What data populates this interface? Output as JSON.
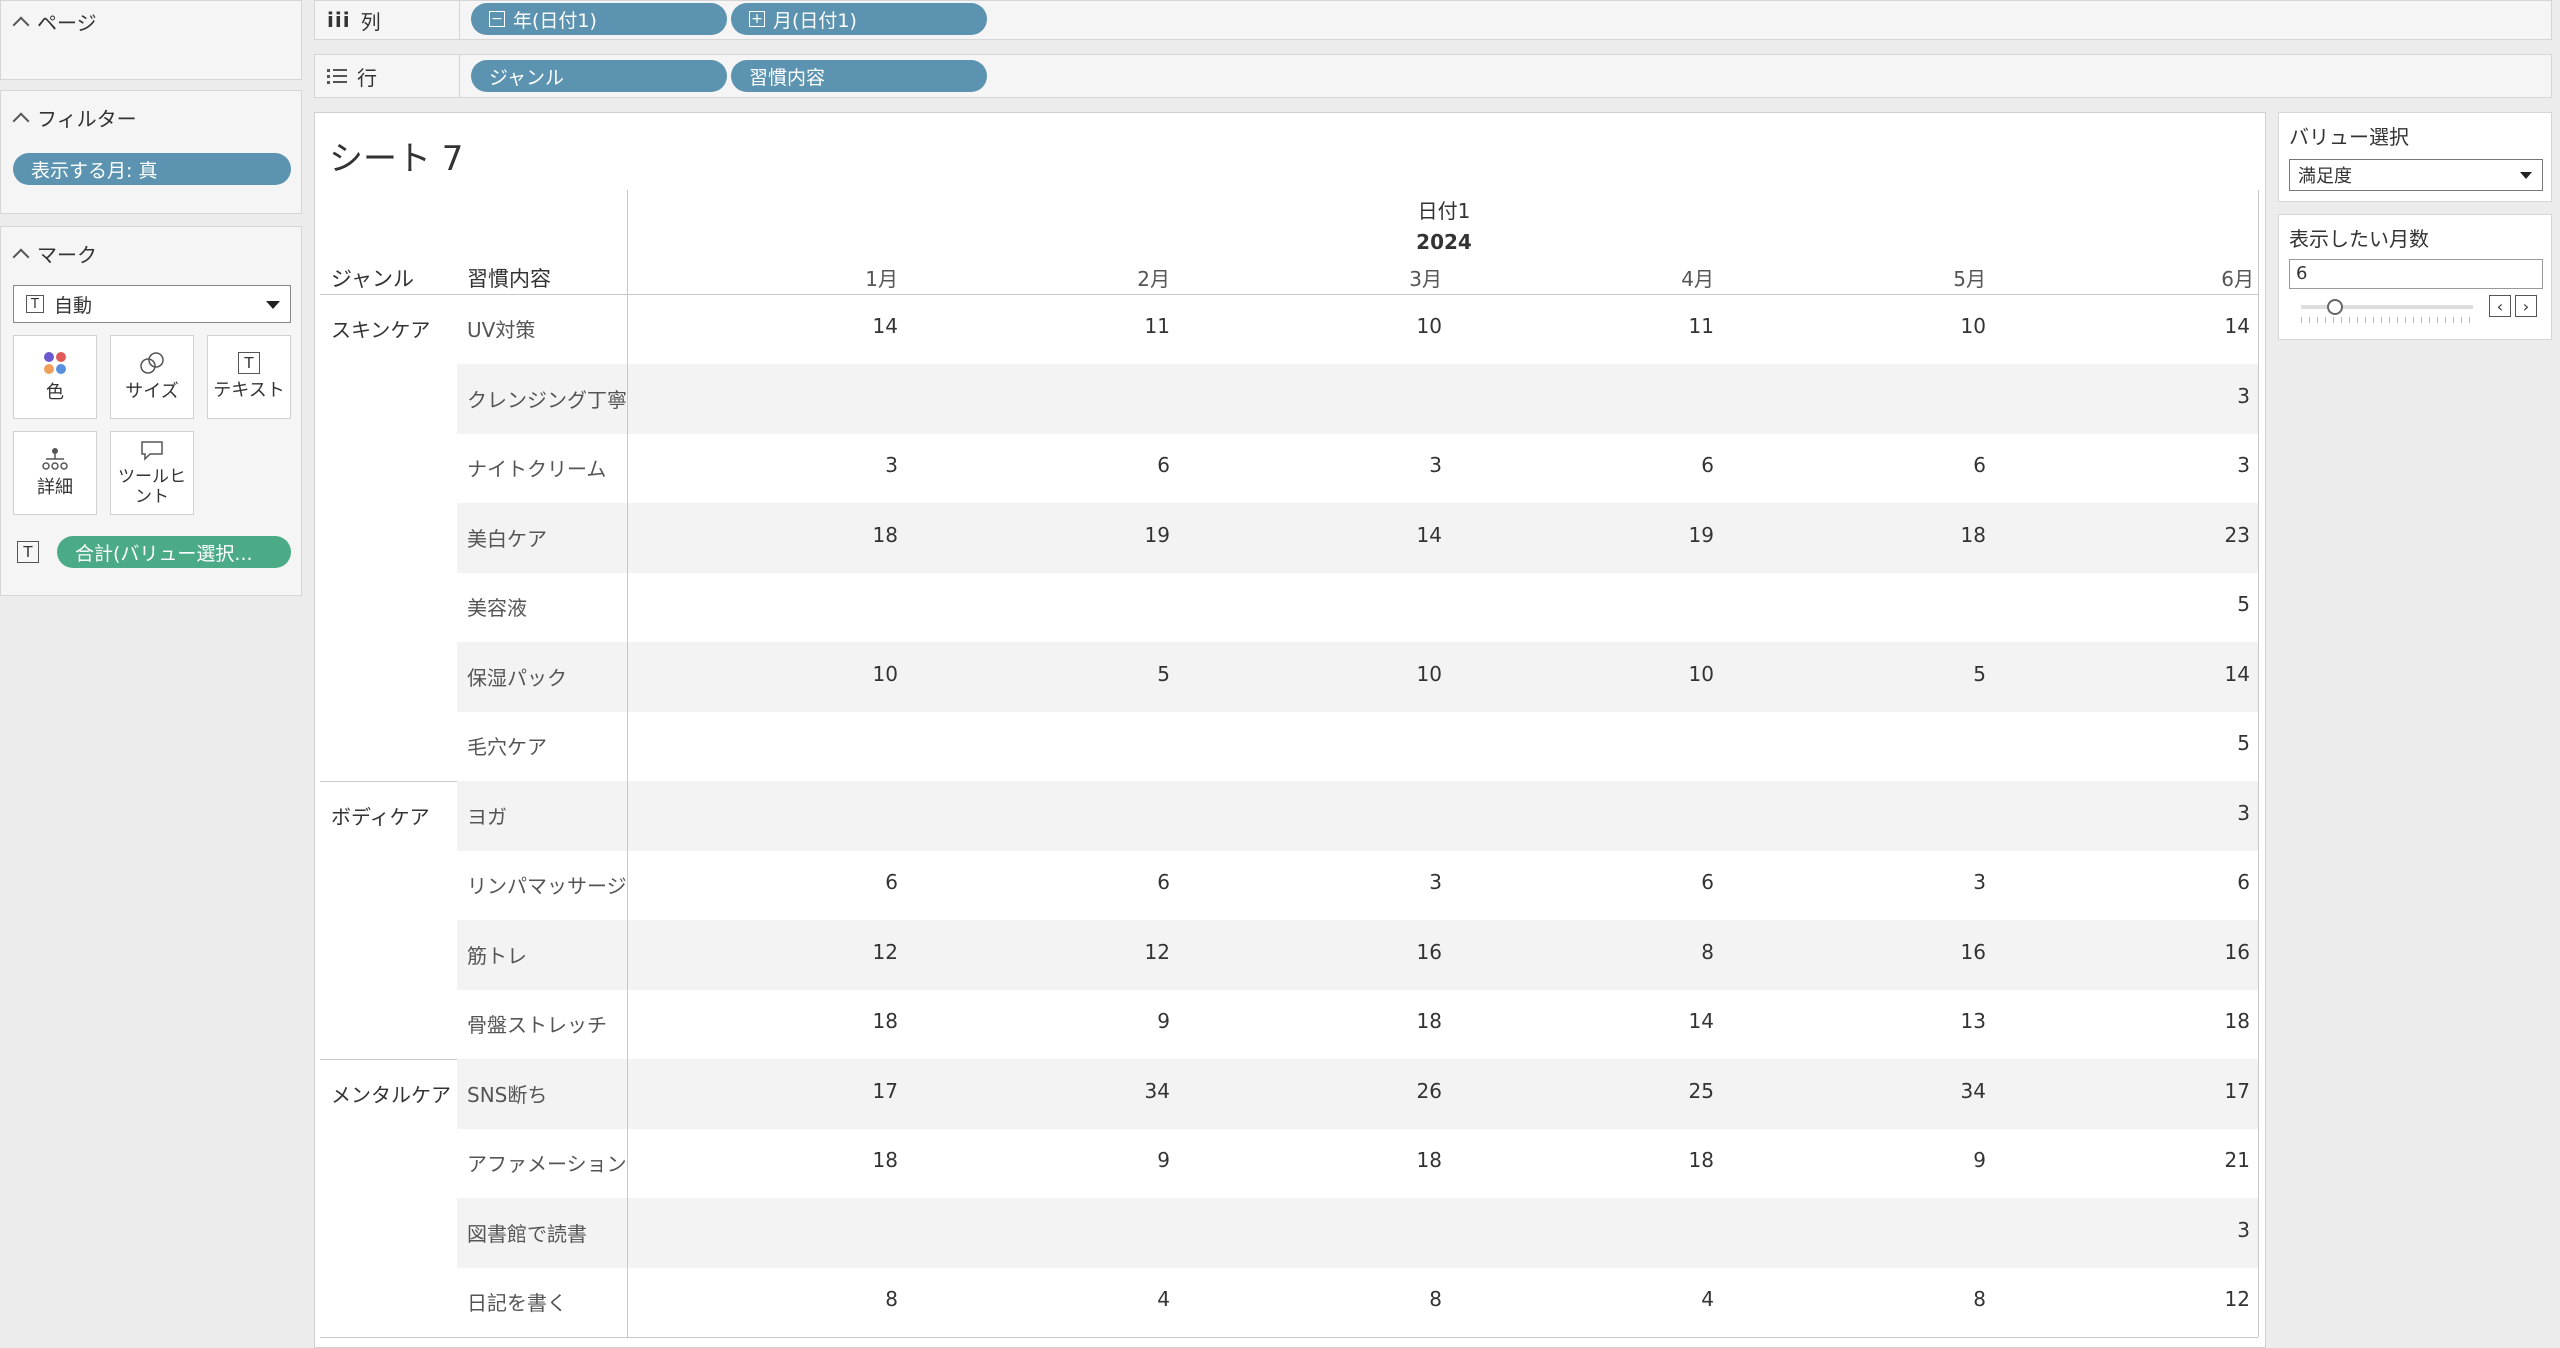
{
  "left_panel": {
    "pages_title": "ページ",
    "filters_title": "フィルター",
    "filter_pill": "表示する月: 真",
    "marks_title": "マーク",
    "mark_type": "自動",
    "mark_buttons": {
      "color": "色",
      "size": "サイズ",
      "text": "テキスト",
      "detail": "詳細",
      "tooltip": "ツールヒ\nント"
    },
    "text_pill": "合計(バリュー選択..."
  },
  "shelves": {
    "columns_label": "列",
    "columns_pills": [
      "年(日付1)",
      "月(日付1)"
    ],
    "rows_label": "行",
    "rows_pills": [
      "ジャンル",
      "習慣内容"
    ]
  },
  "sheet": {
    "title": "シート 7",
    "date_header": "日付1",
    "year": "2024",
    "col_genre": "ジャンル",
    "col_habit": "習慣内容",
    "months": [
      "1月",
      "2月",
      "3月",
      "4月",
      "5月",
      "6月"
    ],
    "groups": [
      {
        "genre": "スキンケア",
        "rows": [
          {
            "habit": "UV対策",
            "values": [
              "14",
              "11",
              "10",
              "11",
              "10",
              "14"
            ]
          },
          {
            "habit": "クレンジング丁寧",
            "values": [
              "",
              "",
              "",
              "",
              "",
              "3"
            ]
          },
          {
            "habit": "ナイトクリーム",
            "values": [
              "3",
              "6",
              "3",
              "6",
              "6",
              "3"
            ]
          },
          {
            "habit": "美白ケア",
            "values": [
              "18",
              "19",
              "14",
              "19",
              "18",
              "23"
            ]
          },
          {
            "habit": "美容液",
            "values": [
              "",
              "",
              "",
              "",
              "",
              "5"
            ]
          },
          {
            "habit": "保湿パック",
            "values": [
              "10",
              "5",
              "10",
              "10",
              "5",
              "14"
            ]
          },
          {
            "habit": "毛穴ケア",
            "values": [
              "",
              "",
              "",
              "",
              "",
              "5"
            ]
          }
        ]
      },
      {
        "genre": "ボディケア",
        "rows": [
          {
            "habit": "ヨガ",
            "values": [
              "",
              "",
              "",
              "",
              "",
              "3"
            ]
          },
          {
            "habit": "リンパマッサージ",
            "values": [
              "6",
              "6",
              "3",
              "6",
              "3",
              "6"
            ]
          },
          {
            "habit": "筋トレ",
            "values": [
              "12",
              "12",
              "16",
              "8",
              "16",
              "16"
            ]
          },
          {
            "habit": "骨盤ストレッチ",
            "values": [
              "18",
              "9",
              "18",
              "14",
              "13",
              "18"
            ]
          }
        ]
      },
      {
        "genre": "メンタルケア",
        "rows": [
          {
            "habit": "SNS断ち",
            "values": [
              "17",
              "34",
              "26",
              "25",
              "34",
              "17"
            ]
          },
          {
            "habit": "アファメーション",
            "values": [
              "18",
              "9",
              "18",
              "18",
              "9",
              "21"
            ]
          },
          {
            "habit": "図書館で読書",
            "values": [
              "",
              "",
              "",
              "",
              "",
              "3"
            ]
          },
          {
            "habit": "日記を書く",
            "values": [
              "8",
              "4",
              "8",
              "4",
              "8",
              "12"
            ]
          }
        ]
      }
    ]
  },
  "right_panel": {
    "value_select_title": "バリュー選択",
    "value_select_value": "満足度",
    "months_title": "表示したい月数",
    "months_value": "6"
  }
}
